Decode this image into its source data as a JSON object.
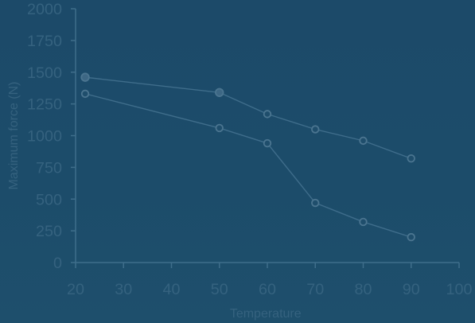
{
  "chart_data": {
    "type": "line",
    "title": "",
    "xlabel": "Temperature",
    "ylabel": "Maximum force (N)",
    "xlim": [
      20,
      100
    ],
    "ylim": [
      0,
      2000
    ],
    "x_ticks": [
      "20",
      "30",
      "40",
      "50",
      "60",
      "70",
      "80",
      "90",
      "100"
    ],
    "y_ticks": [
      "0",
      "250",
      "500",
      "750",
      "1000",
      "1250",
      "1500",
      "1750",
      "2000"
    ],
    "grid": false,
    "series": [
      {
        "points": [
          {
            "x": 22,
            "y": 1460
          },
          {
            "x": 50,
            "y": 1340
          },
          {
            "x": 60,
            "y": 1170
          },
          {
            "x": 70,
            "y": 1050
          },
          {
            "x": 80,
            "y": 960
          },
          {
            "x": 90,
            "y": 820
          }
        ]
      },
      {
        "points": [
          {
            "x": 22,
            "y": 1330
          },
          {
            "x": 50,
            "y": 1060
          },
          {
            "x": 60,
            "y": 940
          },
          {
            "x": 70,
            "y": 470
          },
          {
            "x": 80,
            "y": 320
          },
          {
            "x": 90,
            "y": 200
          }
        ]
      }
    ],
    "colors": {
      "axis": "#3f6e8b",
      "text": "#35627f",
      "line": "#3f6d8b",
      "marker_fill": "#1f4e6c",
      "marker_stroke": "#4b7590",
      "marker_filled": "#3d6784"
    }
  }
}
